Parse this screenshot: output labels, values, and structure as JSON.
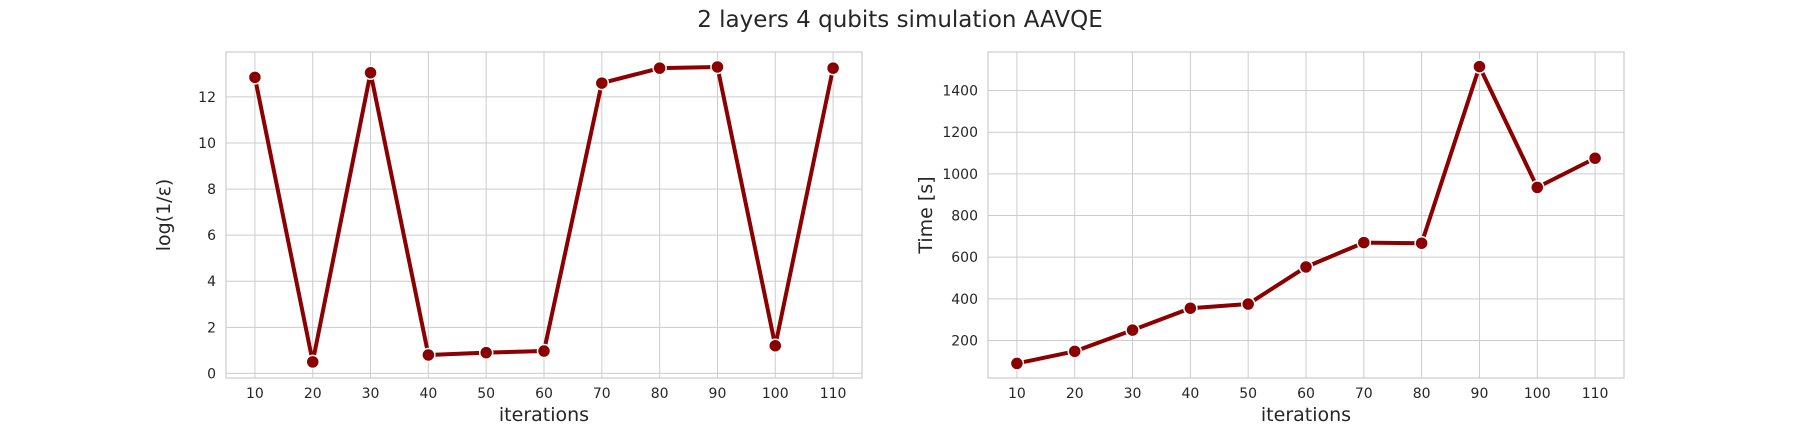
{
  "figure": {
    "title": "2 layers 4 qubits simulation AAVQE"
  },
  "chart_data": [
    {
      "type": "line",
      "xlabel": "iterations",
      "ylabel": "log(1/ε)",
      "x": [
        10,
        20,
        30,
        40,
        50,
        60,
        70,
        80,
        90,
        100,
        110
      ],
      "series": [
        {
          "values": [
            12.85,
            0.5,
            13.05,
            0.8,
            0.9,
            0.97,
            12.6,
            13.25,
            13.3,
            1.2,
            13.25
          ]
        }
      ],
      "xticks": [
        10,
        20,
        30,
        40,
        50,
        60,
        70,
        80,
        90,
        100,
        110
      ],
      "yticks": [
        0,
        2,
        4,
        6,
        8,
        10,
        12
      ],
      "xlim": [
        5,
        115
      ],
      "ylim": [
        -0.2,
        13.95
      ],
      "grid": true,
      "color": "#8b0000"
    },
    {
      "type": "line",
      "xlabel": "iterations",
      "ylabel": "Time [s]",
      "x": [
        10,
        20,
        30,
        40,
        50,
        60,
        70,
        80,
        90,
        100,
        110
      ],
      "series": [
        {
          "values": [
            90,
            148,
            250,
            355,
            375,
            553,
            670,
            667,
            1515,
            935,
            1075
          ]
        }
      ],
      "xticks": [
        10,
        20,
        30,
        40,
        50,
        60,
        70,
        80,
        90,
        100,
        110
      ],
      "yticks": [
        200,
        400,
        600,
        800,
        1000,
        1200,
        1400
      ],
      "xlim": [
        5,
        115
      ],
      "ylim": [
        20,
        1585
      ],
      "grid": true,
      "color": "#8b0000"
    }
  ]
}
